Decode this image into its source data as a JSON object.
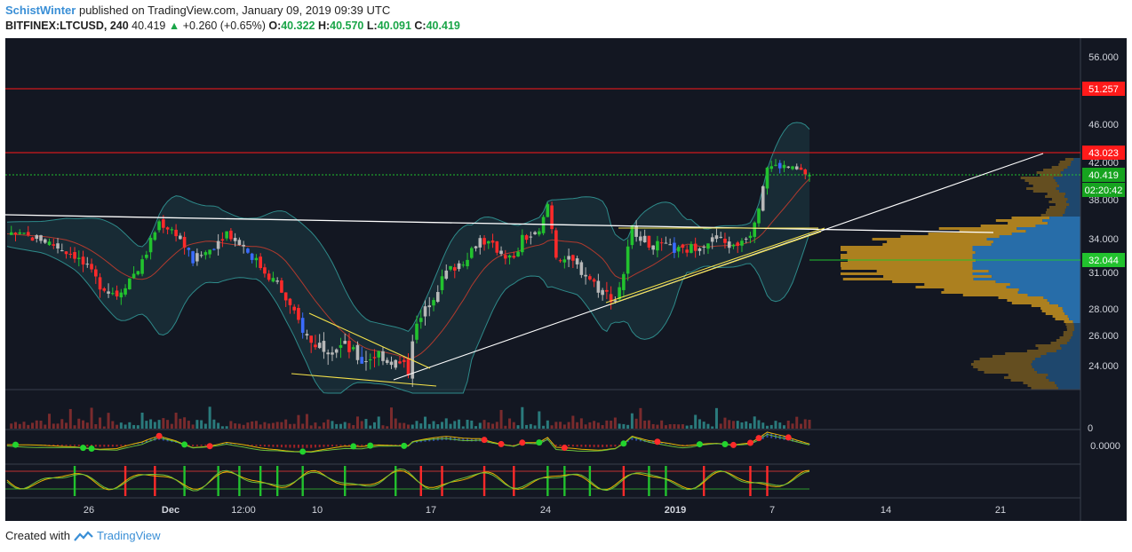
{
  "header": {
    "author": "SchistWinter",
    "published_text": "published on TradingView.com, January 09, 2019 09:39 UTC",
    "symbol": "BITFINEX:LTCUSD, 240",
    "last": "40.419",
    "change": "+0.260 (+0.65%)",
    "open_label": "O:",
    "open": "40.322",
    "high_label": "H:",
    "high": "40.570",
    "low_label": "L:",
    "low": "40.091",
    "close_label": "C:",
    "close": "40.419"
  },
  "footer": {
    "created_with": "Created with",
    "brand": "TradingView"
  },
  "chart_data": {
    "type": "candlestick",
    "y_ticks": [
      "56.000",
      "46.000",
      "42.000",
      "38.000",
      "34.000",
      "31.000",
      "28.000",
      "26.000",
      "24.000"
    ],
    "x_ticks": [
      "26",
      "Dec",
      "12:00",
      "10",
      "17",
      "24",
      "2019",
      "7",
      "14",
      "21"
    ],
    "price_labels": {
      "resistance_high": "51.257",
      "resistance_low": "43.023",
      "last_price": "40.419",
      "countdown": "02:20:42",
      "support": "32.044"
    },
    "volume_zero_label": "0",
    "oscillator_zero_label": "0.0000",
    "close_path": [
      [
        0,
        34.5
      ],
      [
        8,
        34
      ],
      [
        16,
        32.5
      ],
      [
        22,
        30
      ],
      [
        26,
        29.2
      ],
      [
        32,
        31.8
      ],
      [
        36,
        35.7
      ],
      [
        40,
        34.6
      ],
      [
        44,
        32
      ],
      [
        48,
        33
      ],
      [
        52,
        34.7
      ],
      [
        56,
        33.3
      ],
      [
        60,
        31.5
      ],
      [
        64,
        30
      ],
      [
        68,
        27.5
      ],
      [
        72,
        25.5
      ],
      [
        76,
        25.3
      ],
      [
        80,
        25.3
      ],
      [
        84,
        24.3
      ],
      [
        88,
        24.8
      ],
      [
        92,
        24.2
      ],
      [
        95,
        23.8
      ],
      [
        96,
        26
      ],
      [
        100,
        28.5
      ],
      [
        104,
        31
      ],
      [
        108,
        32
      ],
      [
        112,
        34
      ],
      [
        116,
        33
      ],
      [
        120,
        32
      ],
      [
        122,
        34
      ],
      [
        126,
        34.5
      ],
      [
        128,
        37.5
      ],
      [
        130,
        32.5
      ],
      [
        134,
        31.8
      ],
      [
        138,
        30.5
      ],
      [
        140,
        29.7
      ],
      [
        144,
        28.7
      ],
      [
        146,
        31
      ],
      [
        148,
        35
      ],
      [
        152,
        33.5
      ],
      [
        156,
        33.2
      ],
      [
        160,
        32.8
      ],
      [
        164,
        33.5
      ],
      [
        168,
        34
      ],
      [
        172,
        33.2
      ],
      [
        176,
        34.6
      ],
      [
        178,
        37.5
      ],
      [
        180,
        41.5
      ],
      [
        184,
        41.5
      ],
      [
        188,
        40.8
      ],
      [
        190,
        40.4
      ]
    ],
    "volume_heights": [
      4,
      6,
      9,
      5,
      7,
      10,
      6,
      12,
      8,
      5,
      14,
      9,
      7,
      11,
      6,
      18,
      8,
      10,
      13,
      7,
      22,
      9,
      12,
      6,
      16,
      8,
      10,
      7,
      9,
      12,
      8,
      6,
      14,
      9,
      11,
      7,
      10,
      13,
      8,
      6,
      20,
      9,
      12,
      7,
      8,
      10,
      15,
      11,
      24,
      9,
      13
    ],
    "oscillator_signals": [
      {
        "i": 2,
        "c": "green"
      },
      {
        "i": 18,
        "c": "green"
      },
      {
        "i": 20,
        "c": "green"
      },
      {
        "i": 36,
        "c": "red"
      },
      {
        "i": 42,
        "c": "green"
      },
      {
        "i": 48,
        "c": "red"
      },
      {
        "i": 70,
        "c": "green"
      },
      {
        "i": 82,
        "c": "green"
      },
      {
        "i": 86,
        "c": "green"
      },
      {
        "i": 94,
        "c": "green"
      },
      {
        "i": 113,
        "c": "red"
      },
      {
        "i": 117,
        "c": "red"
      },
      {
        "i": 122,
        "c": "red"
      },
      {
        "i": 126,
        "c": "green"
      },
      {
        "i": 132,
        "c": "red"
      },
      {
        "i": 146,
        "c": "green"
      },
      {
        "i": 154,
        "c": "red"
      },
      {
        "i": 164,
        "c": "green"
      },
      {
        "i": 170,
        "c": "green"
      },
      {
        "i": 172,
        "c": "red"
      },
      {
        "i": 176,
        "c": "red"
      },
      {
        "i": 178,
        "c": "red"
      },
      {
        "i": 185,
        "c": "red"
      }
    ],
    "stoch_bars": [
      {
        "i": 16,
        "c": "green"
      },
      {
        "i": 28,
        "c": "red"
      },
      {
        "i": 35,
        "c": "red"
      },
      {
        "i": 42,
        "c": "green"
      },
      {
        "i": 50,
        "c": "green"
      },
      {
        "i": 55,
        "c": "green"
      },
      {
        "i": 60,
        "c": "green"
      },
      {
        "i": 64,
        "c": "green"
      },
      {
        "i": 70,
        "c": "green"
      },
      {
        "i": 80,
        "c": "green"
      },
      {
        "i": 92,
        "c": "green"
      },
      {
        "i": 98,
        "c": "red"
      },
      {
        "i": 103,
        "c": "red"
      },
      {
        "i": 113,
        "c": "red"
      },
      {
        "i": 120,
        "c": "red"
      },
      {
        "i": 128,
        "c": "green"
      },
      {
        "i": 132,
        "c": "green"
      },
      {
        "i": 138,
        "c": "green"
      },
      {
        "i": 146,
        "c": "red"
      },
      {
        "i": 152,
        "c": "green"
      },
      {
        "i": 156,
        "c": "green"
      },
      {
        "i": 165,
        "c": "red"
      },
      {
        "i": 176,
        "c": "red"
      },
      {
        "i": 180,
        "c": "red"
      }
    ],
    "colors": {
      "background": "#131722",
      "panel_border": "#3a3f4c",
      "axis_text": "#d1d4dc",
      "up": "#22c22e",
      "down": "#ff2a2a",
      "neutral": "#b8b8b8",
      "bollinger": "#2e8a8a",
      "basis": "#b03a2e",
      "resistance": "#ff1a1a",
      "trend_white": "#ffffff",
      "trend_yellow": "#f5e24a",
      "support": "#22c22e",
      "volume": "#2f8c8c",
      "volume_down": "#8c2f2f",
      "vp_gold": "#c8931f",
      "vp_blue": "#2a77b8"
    }
  }
}
